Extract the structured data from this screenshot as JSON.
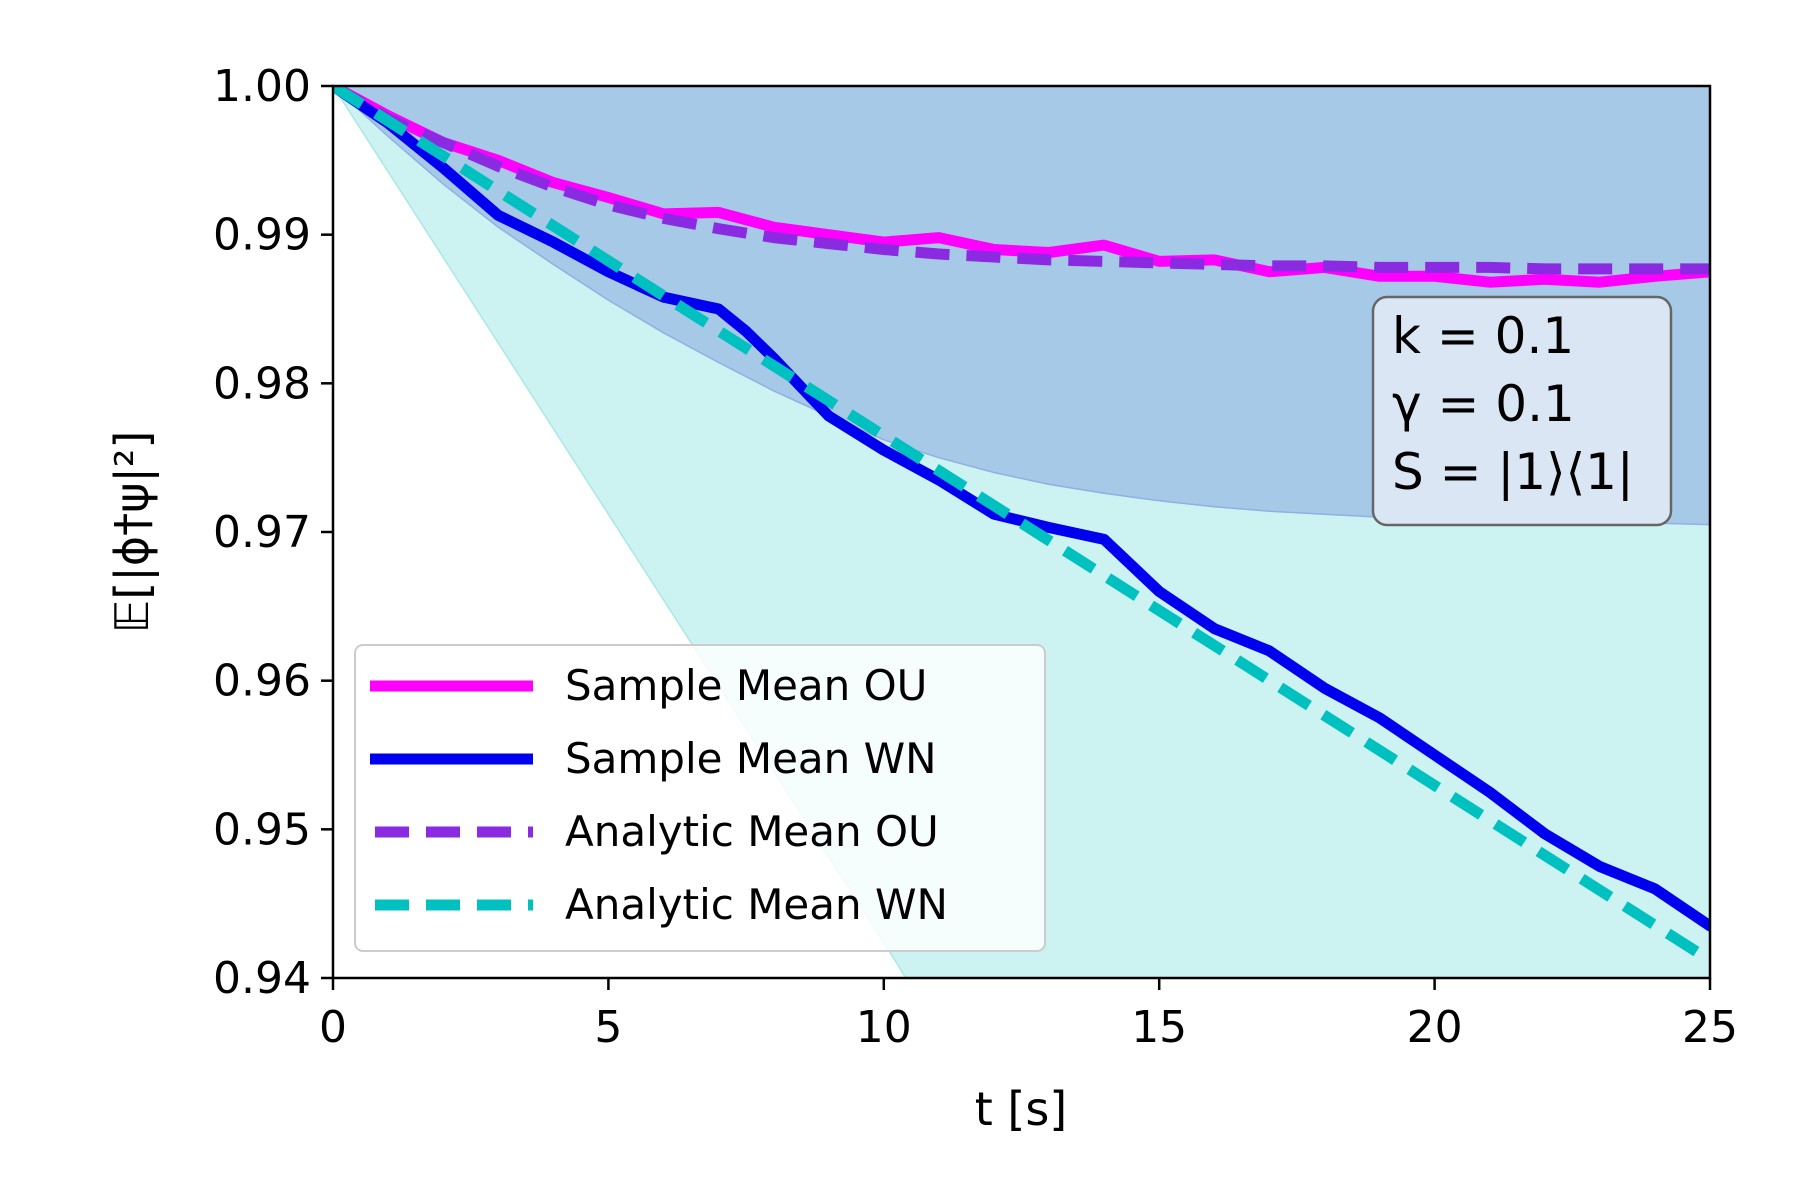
{
  "chart_data": {
    "type": "line",
    "title": "",
    "xlabel": "t [s]",
    "ylabel": "𝔼[|ϕ†ψ|²]",
    "xlim": [
      0,
      25
    ],
    "ylim": [
      0.94,
      1.0
    ],
    "xticks": [
      0,
      5,
      10,
      15,
      20,
      25
    ],
    "xtick_labels": [
      "0",
      "5",
      "10",
      "15",
      "20",
      "25"
    ],
    "yticks": [
      0.94,
      0.95,
      0.96,
      0.97,
      0.98,
      0.99,
      1.0
    ],
    "ytick_labels": [
      "0.94",
      "0.95",
      "0.96",
      "0.97",
      "0.98",
      "0.99",
      "1.00"
    ],
    "grid": false,
    "legend_position": "lower-left",
    "colors": {
      "sample_ou": "#ff00ff",
      "sample_wn": "#0000ee",
      "analytic_ou": "#8a2be2",
      "analytic_wn": "#00c0c0",
      "band_ou": "#8fb0e2",
      "band_wn": "#a8e8e8"
    },
    "bands": [
      {
        "name": "OU band",
        "x": [
          0,
          1,
          2,
          3,
          4,
          5,
          6,
          7,
          8,
          9,
          10,
          11,
          12,
          13,
          14,
          15,
          16,
          17,
          18,
          19,
          20,
          21,
          22,
          23,
          24,
          25
        ],
        "lower": [
          1.0,
          0.9966,
          0.9934,
          0.9905,
          0.988,
          0.9856,
          0.9834,
          0.9814,
          0.9795,
          0.9778,
          0.9762,
          0.975,
          0.974,
          0.9732,
          0.9726,
          0.9721,
          0.9717,
          0.9714,
          0.9712,
          0.971,
          0.9709,
          0.9708,
          0.9707,
          0.9706,
          0.9706,
          0.9705
        ],
        "upper": [
          1.0,
          1.0,
          1.0,
          1.0,
          1.0,
          1.0,
          1.0,
          1.0,
          1.0,
          1.0,
          1.0,
          1.0,
          1.0,
          1.0,
          1.0,
          1.0,
          1.0,
          1.0,
          1.0,
          1.0,
          1.0,
          1.0,
          1.0,
          1.0,
          1.0,
          1.0
        ]
      },
      {
        "name": "WN band",
        "x": [
          0,
          2.5,
          5,
          7.5,
          10,
          10.4,
          25
        ],
        "lower": [
          1.0,
          0.9856,
          0.9712,
          0.9568,
          0.9424,
          0.94,
          0.94
        ],
        "upper": [
          1.0,
          1.0,
          1.0,
          1.0,
          1.0,
          1.0,
          1.0
        ]
      }
    ],
    "series": [
      {
        "name": "Sample Mean OU",
        "style": "solid",
        "x": [
          0,
          1,
          2,
          3,
          4,
          5,
          6,
          7,
          8,
          9,
          10,
          11,
          12,
          13,
          14,
          15,
          16,
          17,
          18,
          19,
          20,
          21,
          22,
          23,
          24,
          25
        ],
        "values": [
          1.0,
          0.998,
          0.9962,
          0.995,
          0.9935,
          0.9925,
          0.9914,
          0.9915,
          0.9905,
          0.99,
          0.9895,
          0.9898,
          0.989,
          0.9888,
          0.9893,
          0.9882,
          0.9883,
          0.9875,
          0.9878,
          0.9872,
          0.9872,
          0.9868,
          0.987,
          0.9868,
          0.9872,
          0.9875
        ]
      },
      {
        "name": "Sample Mean WN",
        "style": "solid",
        "x": [
          0,
          1,
          2,
          3,
          4,
          5,
          6,
          7,
          7.5,
          8,
          9,
          10,
          11,
          12,
          13,
          14,
          15,
          16,
          17,
          18,
          19,
          20,
          21,
          22,
          23,
          24,
          25
        ],
        "values": [
          1.0,
          0.9975,
          0.9945,
          0.9913,
          0.9895,
          0.9875,
          0.9858,
          0.985,
          0.9835,
          0.9817,
          0.9778,
          0.9755,
          0.9735,
          0.9712,
          0.9703,
          0.9695,
          0.966,
          0.9635,
          0.962,
          0.9595,
          0.9575,
          0.955,
          0.9525,
          0.9497,
          0.9475,
          0.946,
          0.9435
        ]
      },
      {
        "name": "Analytic Mean OU",
        "style": "dashed",
        "x": [
          0,
          1,
          2,
          3,
          4,
          5,
          6,
          7,
          8,
          9,
          10,
          11,
          12,
          13,
          14,
          15,
          16,
          17,
          18,
          19,
          20,
          21,
          22,
          23,
          24,
          25
        ],
        "values": [
          1.0,
          0.9978,
          0.9962,
          0.9946,
          0.9932,
          0.992,
          0.9911,
          0.9904,
          0.9898,
          0.9894,
          0.989,
          0.9887,
          0.9885,
          0.9883,
          0.9882,
          0.9881,
          0.988,
          0.9879,
          0.9879,
          0.9878,
          0.9878,
          0.9878,
          0.9877,
          0.9877,
          0.9877,
          0.9877
        ]
      },
      {
        "name": "Analytic Mean WN",
        "style": "dashed",
        "x": [
          0,
          25
        ],
        "values": [
          1.0,
          0.9412
        ]
      }
    ],
    "annotation": {
      "lines": [
        "k = 0.1",
        "γ = 0.1",
        "S = |1⟩⟨1|"
      ],
      "position": "upper-right"
    }
  }
}
